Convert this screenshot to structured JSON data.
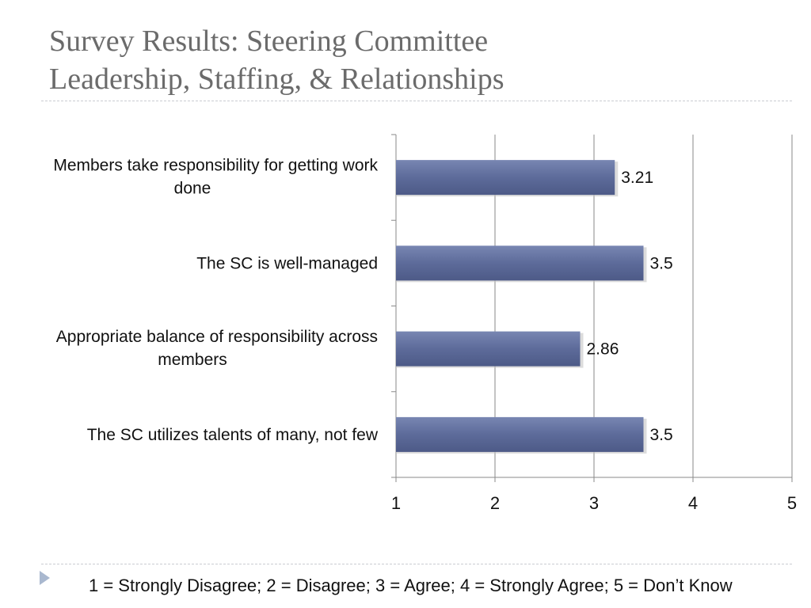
{
  "slide": {
    "title_lines": [
      "Survey Results: Steering Committee",
      "Leadership, Staffing, & Relationships"
    ],
    "footer_note": "1 = Strongly Disagree; 2 = Disagree; 3 = Agree; 4 = Strongly Agree; 5 = Don’t Know"
  },
  "colors": {
    "bar": "#5d6b9a",
    "title": "#6b6b6b",
    "grid": "#8a8a8a",
    "text": "#111111",
    "marker": "#a9b8cf"
  },
  "chart_data": {
    "type": "bar",
    "orientation": "horizontal",
    "categories": [
      [
        "Members take responsibility for getting work",
        "done"
      ],
      [
        "The SC is well-managed"
      ],
      [
        "Appropriate balance of responsibility across",
        "members"
      ],
      [
        "The SC utilizes talents of many, not few"
      ]
    ],
    "values": [
      3.21,
      3.5,
      2.86,
      3.5
    ],
    "data_labels": [
      "3.21",
      "3.5",
      "2.86",
      "3.5"
    ],
    "xlim": [
      1,
      5
    ],
    "x_ticks": [
      "1",
      "2",
      "3",
      "4",
      "5"
    ],
    "grid": true
  }
}
